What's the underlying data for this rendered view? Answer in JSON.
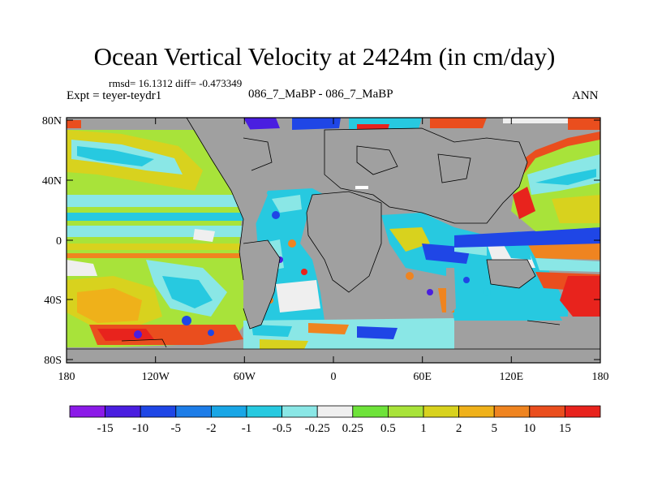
{
  "title": "Ocean Vertical Velocity at 2424m (in cm/day)",
  "stats": "rmsd= 16.1312 diff= -0.473349",
  "expt": "Expt = teyer-teydr1",
  "center_label": "086_7_MaBP - 086_7_MaBP",
  "season": "ANN",
  "lat_ticks": [
    "80N",
    "40N",
    "0",
    "40S",
    "80S"
  ],
  "lon_ticks": [
    "180",
    "120W",
    "60W",
    "0",
    "60E",
    "120E",
    "180"
  ],
  "colorbar": {
    "labels": [
      "-15",
      "-10",
      "-5",
      "-2",
      "-1",
      "-0.5",
      "-0.25",
      "0.25",
      "0.5",
      "1",
      "2",
      "5",
      "10",
      "15"
    ],
    "colors": [
      "#8b1ae8",
      "#4a1ee0",
      "#1f46e6",
      "#1d7de8",
      "#19a6e6",
      "#27c9e0",
      "#8ae7e6",
      "#efefef",
      "#6ee33a",
      "#a8e33a",
      "#d8d21e",
      "#efb11a",
      "#ef8420",
      "#ea4e1e",
      "#e8231d"
    ]
  },
  "colors": {
    "land": "#a0a0a0",
    "frame": "#000000"
  }
}
